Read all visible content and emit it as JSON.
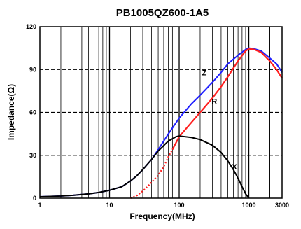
{
  "chart_data": {
    "type": "line",
    "title": "PB1005QZ600-1A5",
    "xlabel": "Frequency(MHz)",
    "ylabel": "Impedance(Ω)",
    "xscale": "log",
    "xlim": [
      1,
      3000
    ],
    "ylim": [
      0,
      120
    ],
    "xticks": [
      {
        "value": 1,
        "label": "1"
      },
      {
        "value": 10,
        "label": "10"
      },
      {
        "value": 100,
        "label": "100"
      },
      {
        "value": 1000,
        "label": "1000"
      },
      {
        "value": 3000,
        "label": "3000"
      }
    ],
    "yticks": [
      0,
      30,
      60,
      90,
      120
    ],
    "grid": true,
    "series": [
      {
        "name": "Z",
        "color": "#1f1fff",
        "dash": "solid",
        "x": [
          1,
          2,
          3,
          5,
          7,
          10,
          15,
          20,
          25,
          30,
          40,
          50,
          70,
          100,
          150,
          200,
          300,
          400,
          500,
          700,
          900,
          1000,
          1200,
          1500,
          2000,
          2500,
          3000
        ],
        "y": [
          1,
          1.5,
          2,
          3,
          4,
          5.5,
          8,
          12,
          16,
          20,
          27,
          34,
          45,
          56,
          66,
          72,
          81,
          88,
          94,
          100,
          104,
          105,
          104.5,
          103,
          98,
          94,
          88
        ]
      },
      {
        "name": "R",
        "color": "#ff1f1f",
        "dash": "solid-after-dotted",
        "x": [
          20,
          25,
          30,
          35,
          40,
          50,
          60,
          70,
          80,
          100,
          150,
          200,
          300,
          400,
          500,
          700,
          900,
          1000,
          1200,
          1500,
          2000,
          2500,
          3000
        ],
        "y": [
          0,
          2,
          5,
          8,
          11,
          16,
          22,
          29,
          34,
          43,
          53,
          60,
          70,
          78,
          85,
          96,
          103,
          104.5,
          104,
          102,
          96,
          90,
          84
        ]
      },
      {
        "name": "X",
        "color": "#000000",
        "dash": "solid",
        "x": [
          1,
          2,
          3,
          5,
          7,
          10,
          15,
          20,
          25,
          30,
          40,
          50,
          70,
          90,
          100,
          150,
          200,
          300,
          400,
          500,
          600,
          700,
          800,
          900,
          1000
        ],
        "y": [
          1,
          1.5,
          2,
          3,
          4,
          5.5,
          8,
          12,
          16,
          20,
          27,
          33,
          40,
          43,
          43.5,
          42.5,
          41,
          37,
          32,
          26,
          20,
          14,
          8,
          3,
          0
        ]
      }
    ],
    "annotations": [
      {
        "text": "Z",
        "x": 230,
        "y": 86
      },
      {
        "text": "R",
        "x": 320,
        "y": 66
      },
      {
        "text": "X",
        "x": 620,
        "y": 20
      }
    ]
  }
}
